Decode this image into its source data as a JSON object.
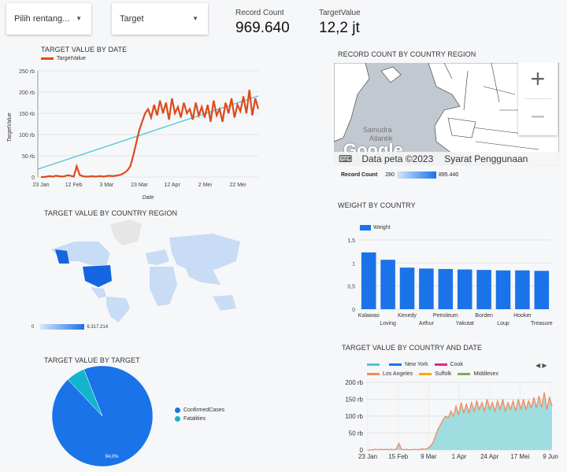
{
  "controls": {
    "date_range": "Pilih rentang...",
    "target": "Target"
  },
  "scorecards": {
    "record_count": {
      "label": "Record Count",
      "value": "969.640"
    },
    "target_value": {
      "label": "TargetValue",
      "value": "12,2 jt"
    }
  },
  "colors": {
    "accent": "#1a73e8",
    "series_orange": "#dd4b1a",
    "trend": "#4fc4d9",
    "pie_teal": "#12b5cb",
    "map_dark": "#1565e0",
    "map_light": "#c9dcf5"
  },
  "map_top": {
    "title": "RECORD COUNT BY COUNTRY REGION",
    "ocean_label_1": "Samudra",
    "ocean_label_2": "Atlantik",
    "logo": "Google",
    "map_data_label": "Data peta ©2023",
    "terms": "Syarat Penggunaan",
    "zoom_in": "+",
    "zoom_out": "−",
    "legend": {
      "label": "Record Count",
      "min": "280",
      "max": "895.440"
    }
  },
  "map_world": {
    "title": "TARGET VALUE BY COUNTRY REGION",
    "legend": {
      "min": "0",
      "max": "6.317.214"
    }
  },
  "pie": {
    "title": "TARGET VALUE BY TARGET",
    "slice_label": "94,0%"
  },
  "chart_data": [
    {
      "type": "line",
      "title": "TARGET VALUE BY DATE",
      "xlabel": "Date",
      "ylabel": "TargetValue",
      "legend": "top-left",
      "series": [
        {
          "name": "TargetValue",
          "color": "#dd4b1a"
        }
      ],
      "trendline": true,
      "x_ticks": [
        "23 Jan",
        "12 Feb",
        "3 Mar",
        "23 Mar",
        "12 Apr",
        "2 Mei",
        "22 Mei"
      ],
      "y_ticks": [
        "0",
        "50 rb",
        "100 rb",
        "150 rb",
        "200 rb",
        "250 rb"
      ],
      "ylim": [
        0,
        250000
      ],
      "values": [
        0,
        0,
        1000,
        2000,
        1000,
        3000,
        2000,
        1000,
        2000,
        4000,
        3000,
        1000,
        25000,
        5000,
        2000,
        1000,
        1000,
        2000,
        1000,
        1500,
        2000,
        1000,
        2000,
        3000,
        2000,
        3000,
        4000,
        6000,
        10000,
        15000,
        25000,
        50000,
        80000,
        110000,
        130000,
        150000,
        160000,
        140000,
        170000,
        145000,
        180000,
        150000,
        175000,
        135000,
        185000,
        150000,
        165000,
        140000,
        175000,
        150000,
        160000,
        135000,
        175000,
        145000,
        165000,
        140000,
        170000,
        130000,
        180000,
        145000,
        160000,
        130000,
        175000,
        150000,
        185000,
        140000,
        170000,
        155000,
        190000,
        150000,
        205000,
        145000,
        185000,
        160000
      ]
    },
    {
      "type": "bar",
      "title": "WEIGHT BY COUNTRY",
      "series": [
        {
          "name": "Weight",
          "color": "#1a73e8"
        }
      ],
      "categories": [
        "Kalawao",
        "Loving",
        "Kenedy",
        "Arthur",
        "Petroleum",
        "Yakutat",
        "Borden",
        "Loup",
        "Hooker",
        "Treasure"
      ],
      "values": [
        1.23,
        1.07,
        0.9,
        0.88,
        0.87,
        0.86,
        0.85,
        0.84,
        0.84,
        0.83
      ],
      "y_ticks": [
        "0",
        "0,5",
        "1",
        "1,5"
      ],
      "ylim": [
        0,
        1.5
      ],
      "legend": "top-left"
    },
    {
      "type": "area",
      "title": "TARGET VALUE BY COUNTRY AND DATE",
      "series": [
        {
          "name": "New York",
          "color": "#1a73e8"
        },
        {
          "name": "Cook",
          "color": "#e52592"
        },
        {
          "name": "Los Angeles",
          "color": "#f28b5c"
        },
        {
          "name": "Suffolk",
          "color": "#f9ab00"
        },
        {
          "name": "Middlesex",
          "color": "#7cb342"
        }
      ],
      "legend_nav": "◀ ▶",
      "x_ticks": [
        "23 Jan",
        "15 Feb",
        "9 Mar",
        "1 Apr",
        "24 Apr",
        "17 Mei",
        "9 Jun"
      ],
      "y_ticks": [
        "0",
        "50 rb",
        "100 rb",
        "150 rb",
        "200 rb"
      ],
      "ylim": [
        0,
        200000
      ],
      "values": [
        0,
        0,
        1000,
        2000,
        1000,
        2000,
        1000,
        2000,
        1000,
        2000,
        1000,
        3000,
        20000,
        2000,
        1000,
        2000,
        1000,
        1000,
        2000,
        1000,
        2000,
        3000,
        2000,
        5000,
        10000,
        20000,
        40000,
        60000,
        75000,
        90000,
        100000,
        95000,
        115000,
        100000,
        130000,
        105000,
        140000,
        110000,
        135000,
        110000,
        140000,
        115000,
        145000,
        120000,
        140000,
        115000,
        150000,
        120000,
        140000,
        115000,
        145000,
        120000,
        150000,
        115000,
        140000,
        120000,
        145000,
        115000,
        150000,
        120000,
        150000,
        120000,
        145000,
        125000,
        155000,
        125000,
        160000,
        125000,
        170000,
        120000,
        155000,
        130000
      ]
    },
    {
      "type": "pie",
      "title": "TARGET VALUE BY TARGET",
      "categories": [
        "ConfirmedCases",
        "Fatalities"
      ],
      "values": [
        94.0,
        6.0
      ],
      "colors": [
        "#1a73e8",
        "#12b5cb"
      ],
      "legend": "right"
    }
  ]
}
